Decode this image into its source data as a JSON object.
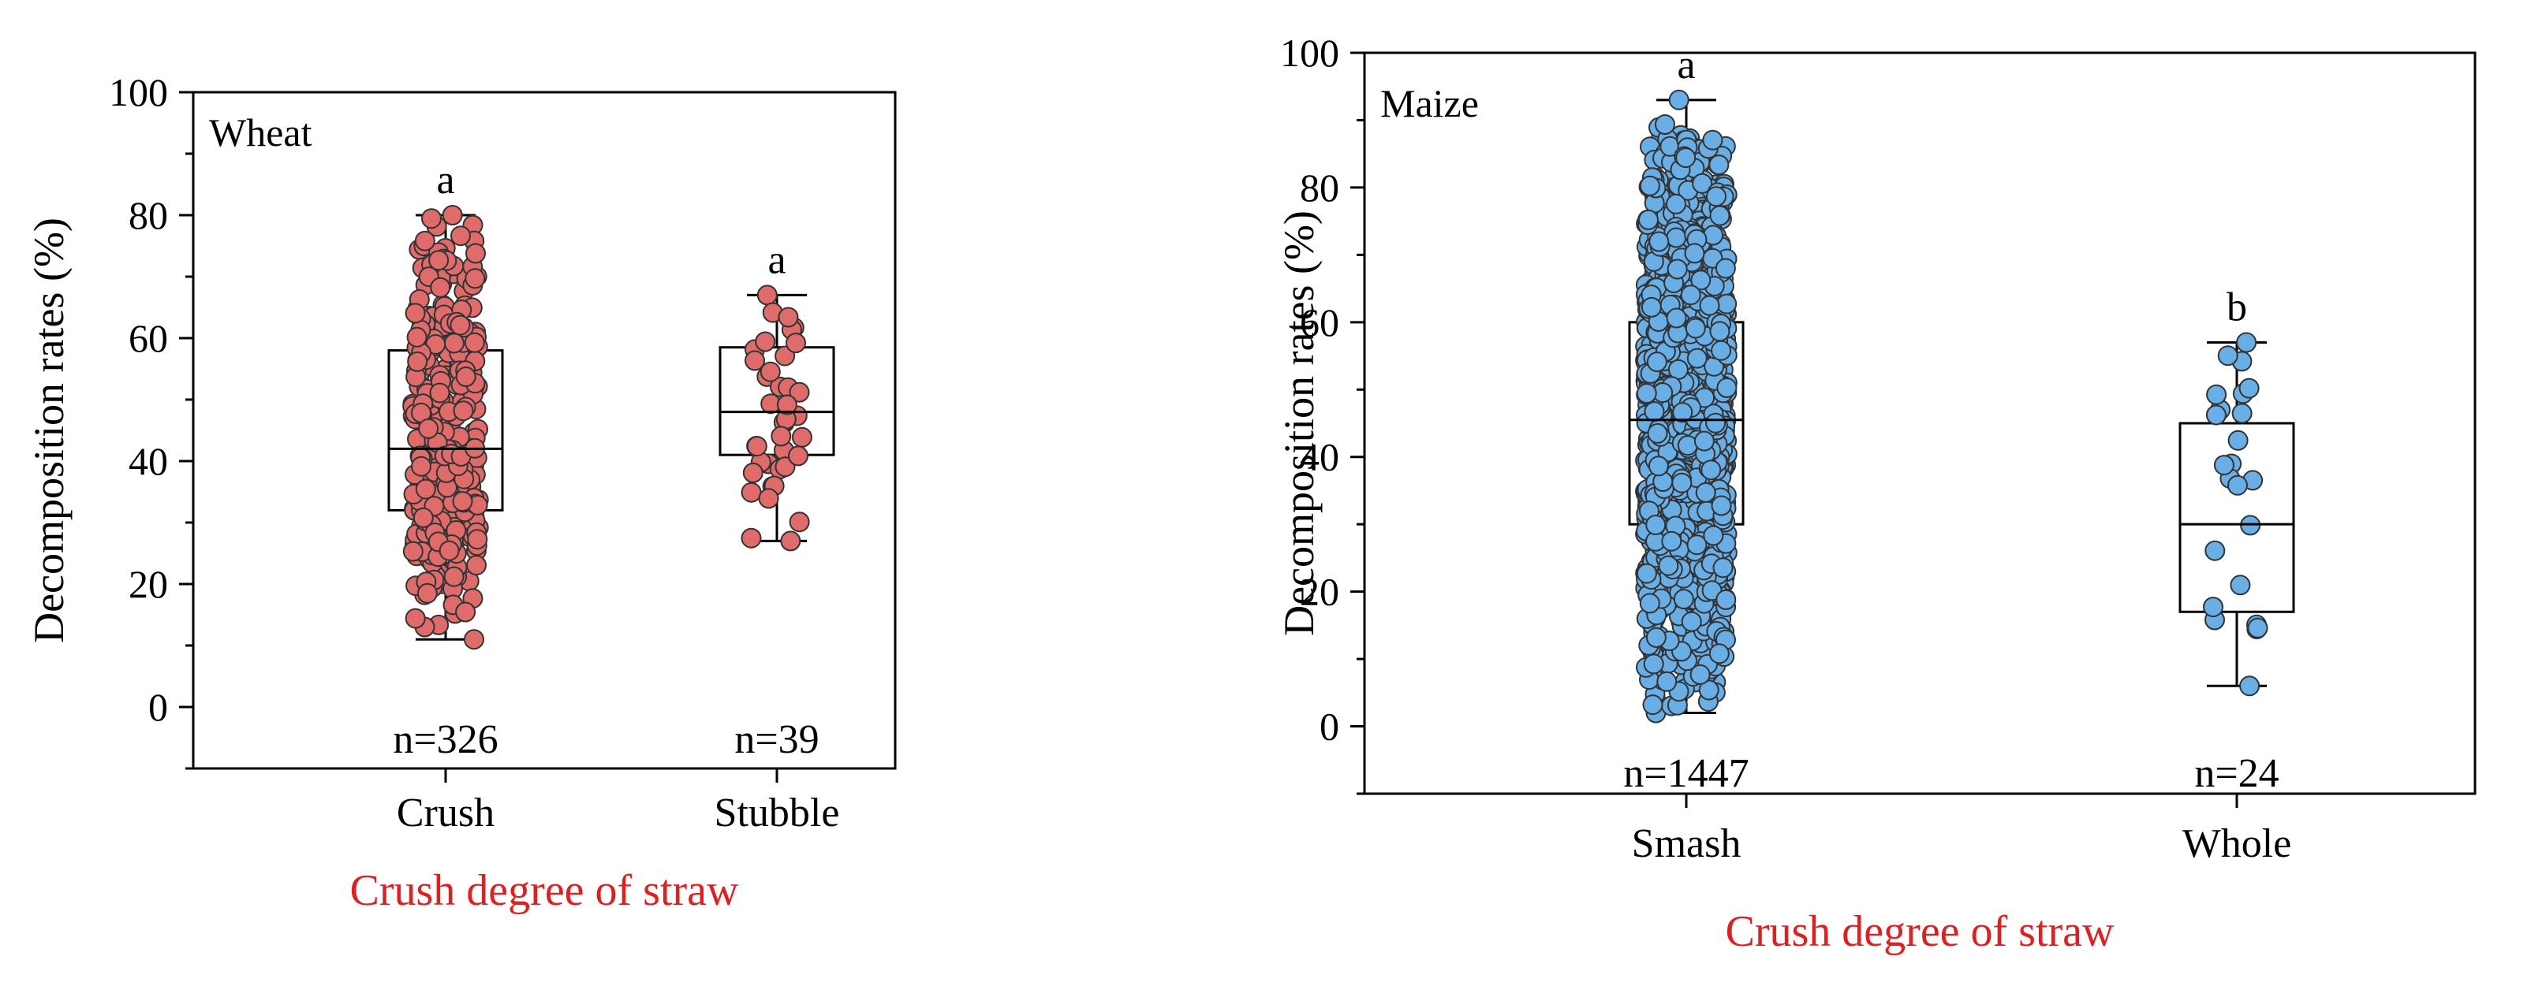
{
  "colors": {
    "wheat_fill": "#e06b6b",
    "maize_fill": "#6aaee6",
    "dot_stroke": "#333333",
    "axis_title": "#e02020"
  },
  "chart_data": [
    {
      "type": "box",
      "panel_label": "Wheat",
      "title": "Wheat",
      "xlabel": "Crush degree of straw",
      "ylabel": "Decomposition rates (%)",
      "ylim": [
        -10,
        100
      ],
      "yticks": [
        0,
        20,
        40,
        60,
        80,
        100
      ],
      "ytick_labels": [
        "0",
        "20",
        "40",
        "60",
        "80",
        "100"
      ],
      "categories": [
        "Crush",
        "Stubble"
      ],
      "series": [
        {
          "name": "Crush",
          "min": 11,
          "q1": 32,
          "median": 42,
          "q3": 58,
          "max": 80,
          "n_label": "n=326",
          "letter": "a",
          "n_points": 326
        },
        {
          "name": "Stubble",
          "min": 27,
          "q1": 41,
          "median": 48,
          "q3": 58.5,
          "max": 67,
          "n_label": "n=39",
          "letter": "a",
          "n_points": 39
        }
      ]
    },
    {
      "type": "box",
      "panel_label": "Maize",
      "title": "Maize",
      "xlabel": "Crush degree of straw",
      "ylabel": "Decomposition rates (%)",
      "ylim": [
        -10,
        100
      ],
      "yticks": [
        0,
        20,
        40,
        60,
        80,
        100
      ],
      "ytick_labels": [
        "0",
        "20",
        "40",
        "60",
        "80",
        "100"
      ],
      "categories": [
        "Smash",
        "Whole"
      ],
      "series": [
        {
          "name": "Smash",
          "min": 2,
          "q1": 30,
          "median": 45.5,
          "q3": 60,
          "max": 93,
          "n_label": "n=1447",
          "letter": "a",
          "n_points": 1447
        },
        {
          "name": "Whole",
          "min": 6,
          "q1": 17,
          "median": 30,
          "q3": 45,
          "max": 57,
          "n_label": "n=24",
          "letter": "b",
          "n_points": 24
        }
      ]
    }
  ]
}
